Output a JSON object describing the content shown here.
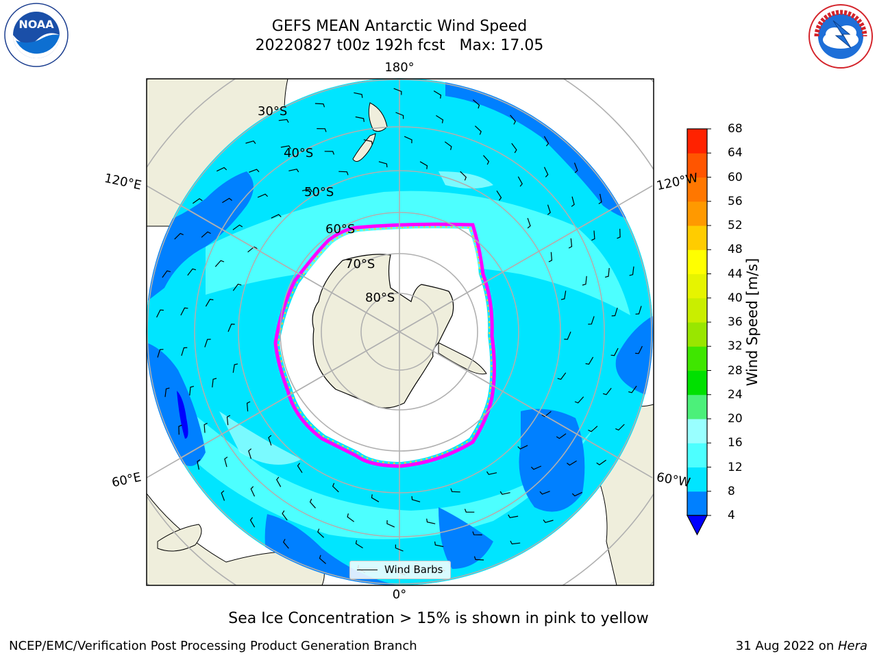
{
  "title": {
    "line1": "GEFS MEAN Antarctic Wind Speed",
    "line2": "20220827 t00z 192h fcst   Max: 17.05"
  },
  "logos": {
    "left": "noaa-logo",
    "right": "national-weather-service-logo",
    "noaa_text": "NOAA",
    "noaa_ring_text": "NATIONAL OCEANIC AND ATMOSPHERIC ADMINISTRATION U.S. DEPARTMENT OF COMMERCE",
    "nws_ring_text": "NATIONAL WEATHER SERVICE"
  },
  "map": {
    "projection": "south-polar-stereographic",
    "longitude_labels": {
      "top": "180°",
      "bottom": "0°",
      "upper_left": "120°E",
      "upper_right": "120°W",
      "lower_left": "60°E",
      "lower_right": "60°W"
    },
    "latitude_labels": [
      "30°S",
      "40°S",
      "50°S",
      "60°S",
      "70°S",
      "80°S"
    ],
    "legend_label": "Wind Barbs"
  },
  "colorbar": {
    "label": "Wind Speed [m/s]",
    "ticks": [
      "4",
      "8",
      "12",
      "16",
      "20",
      "24",
      "28",
      "32",
      "36",
      "40",
      "44",
      "48",
      "52",
      "56",
      "60",
      "64",
      "68"
    ],
    "colors": [
      "#0080ff",
      "#00e5ff",
      "#4dffff",
      "#99ffff",
      "#4cf07a",
      "#00e000",
      "#3fe600",
      "#99e600",
      "#c9ee00",
      "#e6f400",
      "#ffff00",
      "#ffcc00",
      "#ff9900",
      "#ff7700",
      "#ff5500",
      "#ff2200"
    ],
    "under_color": "#0000ff"
  },
  "colors": {
    "ocean_high": "#00e5ff",
    "ocean_mid": "#4dffff",
    "ocean_light": "#99ffff",
    "ocean_low": "#0080ff",
    "land": "#efeedc",
    "sea_ice_low": "#ff00ff",
    "sea_ice_high": "#ffcc33"
  },
  "caption": "Sea Ice Concentration > 15% is shown in pink to yellow",
  "footer": {
    "left": "NCEP/EMC/Verification Post Processing Product Generation Branch",
    "right_date": "31 Aug 2022 on ",
    "right_machine": "Hera"
  }
}
